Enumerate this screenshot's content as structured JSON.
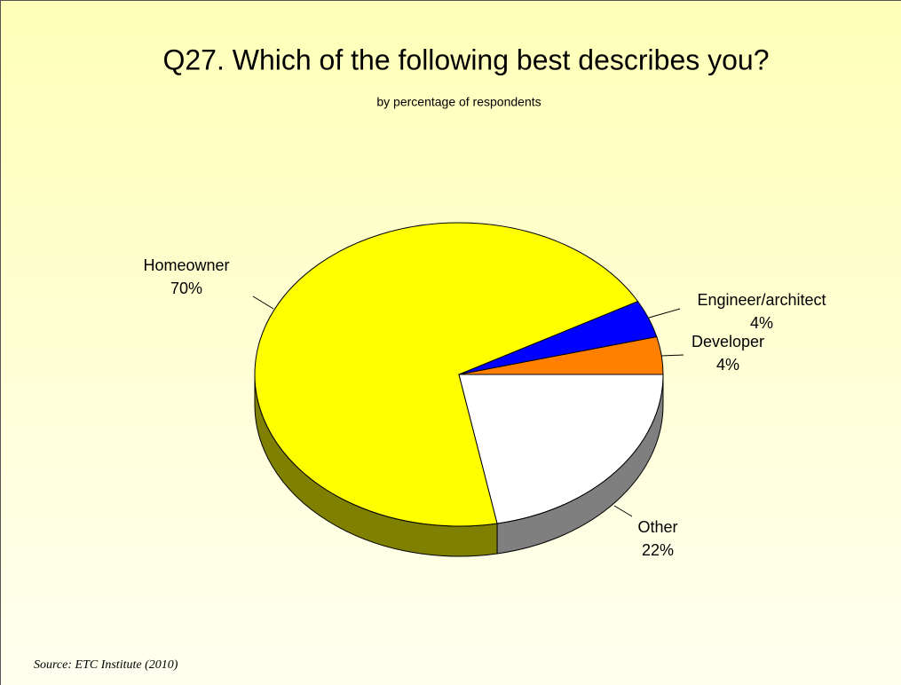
{
  "chart_data": {
    "type": "pie",
    "title": "Q27. Which of the following best describes you?",
    "subtitle": "by percentage of respondents",
    "categories": [
      "Developer",
      "Engineer/architect",
      "Homeowner",
      "Other"
    ],
    "values": [
      4,
      4,
      70,
      22
    ],
    "value_labels": [
      "4%",
      "4%",
      "70%",
      "22%"
    ],
    "colors": [
      "#ff8000",
      "#0000ff",
      "#ffff00",
      "#ffffff"
    ],
    "source": "Source:  ETC Institute (2010)"
  }
}
